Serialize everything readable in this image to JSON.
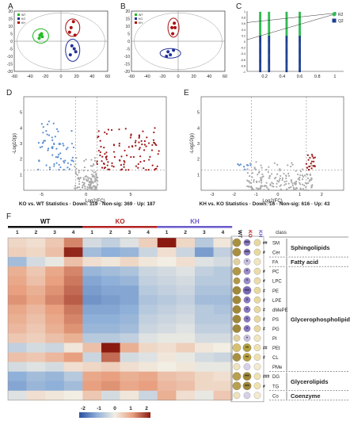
{
  "panels": {
    "A": "A",
    "B": "B",
    "C": "C",
    "D": "D",
    "E": "E",
    "F": "F"
  },
  "chart_data": [
    {
      "type": "scatter",
      "panel": "A",
      "xlim": [
        -60,
        60
      ],
      "ylim": [
        -20,
        20
      ],
      "xticks": [
        "-60",
        "-40",
        "-20",
        "0",
        "20",
        "40",
        "60"
      ],
      "yticks": [
        "-20",
        "-15",
        "-10",
        "-5",
        "0",
        "5",
        "10",
        "15",
        "20"
      ],
      "legend": [
        "WT",
        "KO",
        "KH"
      ],
      "series": [
        {
          "name": "WT",
          "color": "#22bb22",
          "points": [
            [
              -27,
              4
            ],
            [
              -25,
              5
            ],
            [
              -28,
              2
            ],
            [
              -24,
              3
            ]
          ]
        },
        {
          "name": "KO",
          "color": "#223399",
          "points": [
            [
              14,
              -3
            ],
            [
              17,
              -5
            ],
            [
              12,
              -9
            ],
            [
              19,
              -7
            ]
          ]
        },
        {
          "name": "KH",
          "color": "#aa1111",
          "points": [
            [
              13,
              9
            ],
            [
              16,
              13
            ],
            [
              11,
              6
            ],
            [
              18,
              4
            ]
          ]
        }
      ]
    },
    {
      "type": "scatter",
      "panel": "B",
      "legend": [
        "WT",
        "KO",
        "KH"
      ],
      "xlim": [
        -60,
        60
      ],
      "ylim": [
        -20,
        20
      ],
      "xticks": [
        "-60",
        "-40",
        "-20",
        "0",
        "20",
        "40",
        "60"
      ],
      "yticks": [
        "-20",
        "-15",
        "-10",
        "-5",
        "0",
        "5",
        "10",
        "15",
        "20"
      ],
      "series": [
        {
          "name": "KO",
          "color": "#223399",
          "points": [
            [
              -13,
              -7
            ],
            [
              -10,
              -9
            ],
            [
              -15,
              -10
            ],
            [
              -6,
              -6
            ]
          ]
        },
        {
          "name": "KH",
          "color": "#aa1111",
          "points": [
            [
              -8,
              9
            ],
            [
              -4,
              9
            ],
            [
              -7,
              5
            ],
            [
              -5,
              12
            ]
          ]
        }
      ]
    },
    {
      "type": "scatter",
      "panel": "C",
      "legend": [
        "R2",
        "Q2"
      ],
      "xlim": [
        0,
        1.1
      ],
      "ylim": [
        -1,
        1
      ],
      "xticks": [
        "0.2",
        "0.4",
        "0.6",
        "0.8",
        "1"
      ],
      "yticks": [
        "-1",
        "-0.8",
        "-0.6",
        "-0.4",
        "-0.2",
        "0",
        "0.2",
        "0.4",
        "0.6",
        "0.8",
        "1"
      ],
      "series": [
        {
          "name": "R2",
          "color": "#33bb55",
          "xs": [
            0.15,
            0.25,
            0.45,
            0.6
          ],
          "ymin": 0.15,
          "ymax": 0.95,
          "final": [
            1.0,
            0.93
          ]
        },
        {
          "name": "Q2",
          "color": "#1d3f8f",
          "xs": [
            0.15,
            0.25,
            0.45,
            0.6
          ],
          "ymin": -1.0,
          "ymax": 0.15,
          "final": [
            1.0,
            0.9
          ]
        }
      ]
    },
    {
      "type": "scatter",
      "panel": "D",
      "xlabel": "Log2(FC)",
      "ylabel": "-Log10(p)",
      "xlim": [
        -7,
        9
      ],
      "ylim": [
        0,
        6
      ],
      "xticks": [
        "-5",
        "0",
        "5"
      ],
      "yticks": [
        "1",
        "2",
        "3",
        "4",
        "5"
      ],
      "summary": "KO vs. WT Statistics · Down: 119 · Non-sig: 369 · Up: 187",
      "counts": {
        "down": 119,
        "nonsig": 369,
        "up": 187
      }
    },
    {
      "type": "scatter",
      "panel": "E",
      "xlabel": "Log2(FC)",
      "ylabel": "-Log10(p)",
      "xlim": [
        -3.5,
        3
      ],
      "ylim": [
        0,
        6
      ],
      "xticks": [
        "-3",
        "-2",
        "-1",
        "0",
        "1",
        "2"
      ],
      "yticks": [
        "1",
        "2",
        "3",
        "4",
        "5"
      ],
      "summary": "KH vs. KO Statistics · Down: 16 · Non-sig: 616 · Up: 43",
      "counts": {
        "down": 16,
        "nonsig": 616,
        "up": 43
      }
    },
    {
      "type": "heatmap",
      "panel": "F",
      "groups": [
        "WT",
        "KO",
        "KH"
      ],
      "group_colors": [
        "#111111",
        "#b22222",
        "#6a5acd"
      ],
      "columns": [
        "1",
        "2",
        "3",
        "4",
        "1",
        "2",
        "3",
        "4",
        "1",
        "2",
        "3",
        "4"
      ],
      "scale": {
        "ticks": [
          "-2",
          "-1",
          "0",
          "1",
          "2"
        ],
        "colors": [
          "#2a4fa0",
          "#8fb0d8",
          "#f2eee4",
          "#e8a080",
          "#8a1a10"
        ]
      },
      "rows": [
        "SM",
        "Cer",
        "FA",
        "PC",
        "LPC",
        "PE",
        "LPE",
        "dMePE",
        "PS",
        "PG",
        "PI",
        "PEt",
        "CL",
        "PMe",
        "DG",
        "TG",
        "Co"
      ],
      "values": [
        [
          0.3,
          0.2,
          0.5,
          1.2,
          -0.3,
          -0.5,
          -0.2,
          0.4,
          2.0,
          0.3,
          -0.6,
          0.1
        ],
        [
          0.4,
          0.3,
          0.6,
          1.9,
          -0.8,
          -1.0,
          -0.9,
          -0.4,
          0.2,
          -0.4,
          -1.2,
          -0.5
        ],
        [
          -0.8,
          -0.3,
          -0.1,
          0.6,
          0.2,
          0.1,
          0.3,
          0.1,
          0.0,
          0.2,
          -0.2,
          -0.3
        ],
        [
          0.8,
          0.5,
          0.9,
          1.2,
          -0.9,
          -0.8,
          -0.7,
          -0.4,
          -0.3,
          -0.2,
          -0.5,
          -0.6
        ],
        [
          0.9,
          0.6,
          1.0,
          1.3,
          -1.1,
          -1.0,
          -0.9,
          -0.5,
          -0.4,
          -0.3,
          -0.6,
          -0.6
        ],
        [
          1.0,
          0.8,
          1.1,
          1.4,
          -1.2,
          -1.1,
          -1.1,
          -0.6,
          -0.5,
          -0.4,
          -0.7,
          -0.7
        ],
        [
          1.1,
          0.9,
          1.2,
          1.5,
          -1.3,
          -1.2,
          -1.1,
          -0.7,
          -0.6,
          -0.5,
          -0.8,
          -0.8
        ],
        [
          0.9,
          0.7,
          1.0,
          1.3,
          -1.1,
          -1.1,
          -1.0,
          -0.6,
          -0.5,
          -0.4,
          -0.6,
          -0.7
        ],
        [
          0.8,
          0.6,
          0.9,
          1.2,
          -1.0,
          -1.0,
          -0.9,
          -0.5,
          -0.4,
          -0.3,
          -0.6,
          -0.6
        ],
        [
          0.7,
          0.5,
          0.8,
          1.1,
          -0.9,
          -0.9,
          -0.8,
          -0.4,
          -0.3,
          -0.2,
          -0.5,
          -0.5
        ],
        [
          0.5,
          0.4,
          0.6,
          0.8,
          -0.6,
          -0.6,
          -0.5,
          -0.2,
          -0.1,
          -0.1,
          -0.3,
          -0.3
        ],
        [
          -0.5,
          -0.3,
          -0.4,
          0.1,
          0.6,
          2.1,
          0.8,
          0.3,
          0.2,
          0.4,
          0.1,
          0.0
        ],
        [
          0.6,
          0.5,
          0.7,
          1.0,
          -0.4,
          1.4,
          -0.3,
          -0.2,
          0.1,
          -0.1,
          -0.3,
          -0.4
        ],
        [
          -0.3,
          -0.2,
          -0.3,
          0.2,
          0.3,
          0.4,
          0.2,
          0.1,
          0.0,
          0.1,
          -0.1,
          -0.1
        ],
        [
          -1.0,
          -0.8,
          -0.9,
          -0.6,
          0.9,
          1.0,
          0.8,
          0.9,
          0.6,
          0.5,
          0.3,
          0.2
        ],
        [
          -1.1,
          -0.9,
          -1.0,
          -0.8,
          1.0,
          1.1,
          0.9,
          1.0,
          0.7,
          0.6,
          0.3,
          0.3
        ],
        [
          -0.2,
          0.2,
          0.1,
          0.0,
          0.5,
          -0.3,
          0.1,
          -0.4,
          0.8,
          0.2,
          -0.1,
          0.5
        ]
      ],
      "classes": [
        {
          "name": "Sphingolipids",
          "from": 0,
          "to": 1
        },
        {
          "name": "Fatty acid",
          "from": 2,
          "to": 2
        },
        {
          "name": "Glycerophospholipids",
          "from": 3,
          "to": 13
        },
        {
          "name": "Glycerolipids",
          "from": 14,
          "to": 15
        },
        {
          "name": "Coenzyme",
          "from": 16,
          "to": 16
        }
      ],
      "class_header": "class",
      "dot_headers": [
        "WT",
        "KO",
        "KH"
      ],
      "dot_sizes": [
        [
          3,
          2,
          2
        ],
        [
          3,
          2,
          2
        ],
        [
          2,
          2,
          2
        ],
        [
          3,
          2,
          2
        ],
        [
          2,
          2,
          2
        ],
        [
          3,
          3,
          2
        ],
        [
          3,
          2,
          2
        ],
        [
          3,
          2,
          2
        ],
        [
          3,
          2,
          2
        ],
        [
          3,
          2,
          2
        ],
        [
          2,
          2,
          2
        ],
        [
          3,
          3,
          2
        ],
        [
          3,
          3,
          2
        ],
        [
          2,
          2,
          2
        ],
        [
          3,
          3,
          2
        ],
        [
          3,
          3,
          2
        ],
        [
          2,
          2,
          2
        ]
      ],
      "dot_colors": [
        [
          "#a89040",
          "#8878c0",
          "#e8d8a0"
        ],
        [
          "#a89040",
          "#8878c0",
          "#e8d8a0"
        ],
        [
          "#e0d0a0",
          "#c8c0e0",
          "#f0e6c0"
        ],
        [
          "#b09848",
          "#9a8cc8",
          "#eadcaa"
        ],
        [
          "#b09848",
          "#9a8cc8",
          "#eadcaa"
        ],
        [
          "#a08838",
          "#7868b8",
          "#e8d8a0"
        ],
        [
          "#a08838",
          "#8878c0",
          "#e8d8a0"
        ],
        [
          "#a08838",
          "#8878c0",
          "#e8d8a0"
        ],
        [
          "#a08838",
          "#8878c0",
          "#e8d8a0"
        ],
        [
          "#a08838",
          "#8878c0",
          "#e8d8a0"
        ],
        [
          "#e0d0a0",
          "#c8c0e0",
          "#f0e6c0"
        ],
        [
          "#d8c070",
          "#b0a040",
          "#efe2b0"
        ],
        [
          "#a89040",
          "#b8a040",
          "#efe2b0"
        ],
        [
          "#efe2c0",
          "#d8d0e8",
          "#f4ead0"
        ],
        [
          "#b8a050",
          "#a08838",
          "#efe2b0"
        ],
        [
          "#b8a050",
          "#a08838",
          "#efe2b0"
        ],
        [
          "#efe2c0",
          "#d8d0e8",
          "#f4ead0"
        ]
      ],
      "stars": [
        "***",
        "***",
        "*",
        "*",
        "*",
        "***",
        "*",
        "*",
        "*",
        "*",
        "*",
        "**",
        "**",
        "",
        "***",
        "***",
        ""
      ],
      "hashes": [
        "##",
        "#",
        "",
        "#",
        "#",
        "#",
        "#",
        "#",
        "#",
        "#",
        "",
        "##",
        "#",
        "",
        "###",
        "#",
        ""
      ]
    }
  ]
}
